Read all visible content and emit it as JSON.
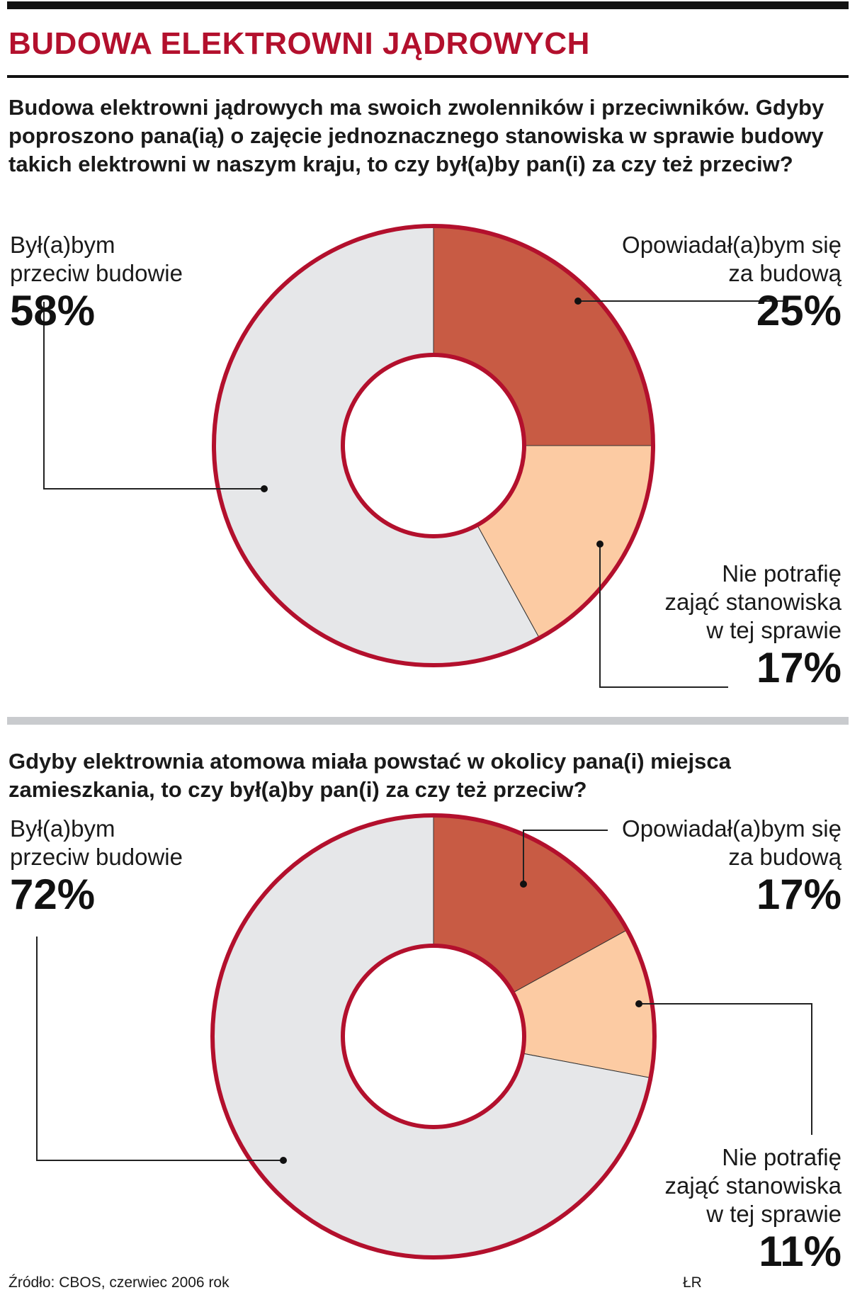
{
  "header": {
    "title": "BUDOWA ELEKTROWNI JĄDROWYCH"
  },
  "colors": {
    "accent": "#b3102d",
    "za": "#c85b44",
    "nie_wiem": "#fccba3",
    "przeciw": "#e6e7e9",
    "ring": "#b3102d"
  },
  "chart_data": [
    {
      "type": "pie",
      "title": "Budowa elektrowni jądrowych ma swoich zwolenników i przeciwników. Gdyby poproszono pana(ią) o zajęcie jednoznacznego stanowiska w sprawie budowy takich elektrowni w naszym kraju, to czy był(a)by pan(i) za czy też przeciw?",
      "slices": [
        {
          "key": "za",
          "lines": [
            "Opowiadał(a)bym się",
            "za budową"
          ],
          "value": 25,
          "display": "25%"
        },
        {
          "key": "nie_wiem",
          "lines": [
            "Nie potrafię",
            "zająć stanowiska",
            "w tej sprawie"
          ],
          "value": 17,
          "display": "17%"
        },
        {
          "key": "przeciw",
          "lines": [
            "Był(a)bym",
            "przeciw budowie"
          ],
          "value": 58,
          "display": "58%"
        }
      ]
    },
    {
      "type": "pie",
      "title": "Gdyby elektrownia atomowa miała powstać w okolicy pana(i) miejsca zamieszkania, to czy był(a)by pan(i) za czy też przeciw?",
      "slices": [
        {
          "key": "za",
          "lines": [
            "Opowiadał(a)bym się",
            "za budową"
          ],
          "value": 17,
          "display": "17%"
        },
        {
          "key": "nie_wiem",
          "lines": [
            "Nie potrafię",
            "zająć stanowiska",
            "w tej sprawie"
          ],
          "value": 11,
          "display": "11%"
        },
        {
          "key": "przeciw",
          "lines": [
            "Był(a)bym",
            "przeciw budowie"
          ],
          "value": 72,
          "display": "72%"
        }
      ]
    }
  ],
  "footer": {
    "source": "Źródło: CBOS, czerwiec 2006 rok",
    "credit": "ŁR"
  }
}
